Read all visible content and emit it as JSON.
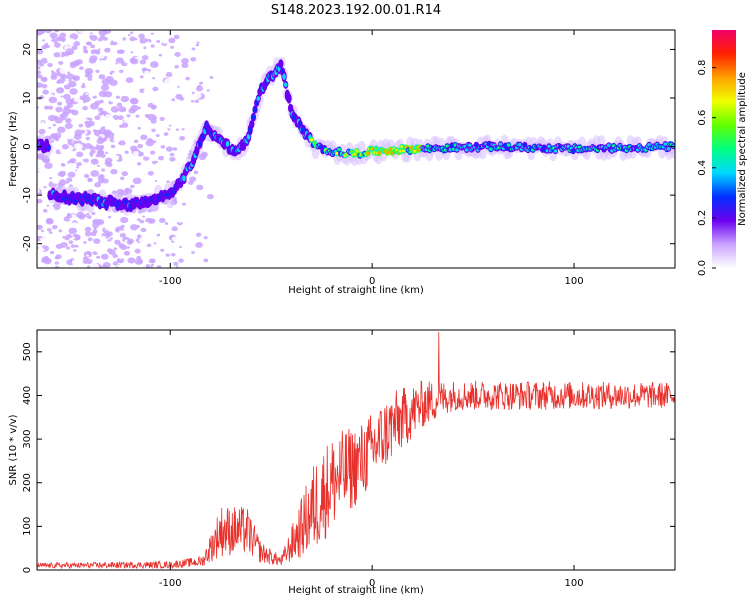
{
  "title": "S148.2023.192.00.01.R14",
  "chart_data": [
    {
      "type": "heatmap",
      "title": "S148.2023.192.00.01.R14",
      "xlabel": "Height of straight line (km)",
      "ylabel": "Frequency (Hz)",
      "xlim": [
        -166,
        150
      ],
      "ylim": [
        -25,
        24
      ],
      "xticks": [
        -100,
        0,
        100
      ],
      "yticks": [
        -20,
        -10,
        0,
        10,
        20
      ],
      "colorbar": {
        "label": "Normalized spectral amplitude",
        "range": [
          0,
          0.95
        ],
        "ticks": [
          "0.0",
          "0.2",
          "0.4",
          "0.6",
          "0.8"
        ]
      },
      "ridge": [
        {
          "x": -160,
          "f": -10
        },
        {
          "x": -140,
          "f": -11
        },
        {
          "x": -120,
          "f": -12
        },
        {
          "x": -100,
          "f": -10
        },
        {
          "x": -90,
          "f": -4
        },
        {
          "x": -82,
          "f": 4
        },
        {
          "x": -75,
          "f": 1
        },
        {
          "x": -68,
          "f": -1
        },
        {
          "x": -62,
          "f": 1
        },
        {
          "x": -55,
          "f": 12
        },
        {
          "x": -45,
          "f": 17
        },
        {
          "x": -40,
          "f": 7
        },
        {
          "x": -34,
          "f": 3
        },
        {
          "x": -28,
          "f": 0
        },
        {
          "x": -20,
          "f": -1
        },
        {
          "x": -10,
          "f": -1.5
        },
        {
          "x": 0,
          "f": -1
        },
        {
          "x": 20,
          "f": -0.5
        },
        {
          "x": 60,
          "f": 0
        },
        {
          "x": 100,
          "f": -0.5
        },
        {
          "x": 150,
          "f": 0
        }
      ]
    },
    {
      "type": "line",
      "xlabel": "Height of straight line (km)",
      "ylabel": "SNR (10 * v/v)",
      "xlim": [
        -166,
        150
      ],
      "ylim": [
        0,
        550
      ],
      "xticks": [
        -100,
        0,
        100
      ],
      "yticks": [
        0,
        100,
        200,
        300,
        400,
        500
      ],
      "series": [
        {
          "name": "SNR",
          "color": "#e8312c",
          "envelope": [
            {
              "x": -166,
              "mean": 10,
              "spread": 6
            },
            {
              "x": -100,
              "mean": 12,
              "spread": 8
            },
            {
              "x": -84,
              "mean": 20,
              "spread": 12
            },
            {
              "x": -75,
              "mean": 90,
              "spread": 60
            },
            {
              "x": -62,
              "mean": 90,
              "spread": 55
            },
            {
              "x": -55,
              "mean": 40,
              "spread": 25
            },
            {
              "x": -45,
              "mean": 20,
              "spread": 12
            },
            {
              "x": -28,
              "mean": 150,
              "spread": 110
            },
            {
              "x": -20,
              "mean": 200,
              "spread": 110
            },
            {
              "x": -5,
              "mean": 250,
              "spread": 90
            },
            {
              "x": 10,
              "mean": 330,
              "spread": 80
            },
            {
              "x": 25,
              "mean": 380,
              "spread": 55
            },
            {
              "x": 40,
              "mean": 400,
              "spread": 35
            },
            {
              "x": 150,
              "mean": 400,
              "spread": 30
            }
          ],
          "peak": {
            "x": 33,
            "y": 545
          }
        }
      ]
    }
  ]
}
